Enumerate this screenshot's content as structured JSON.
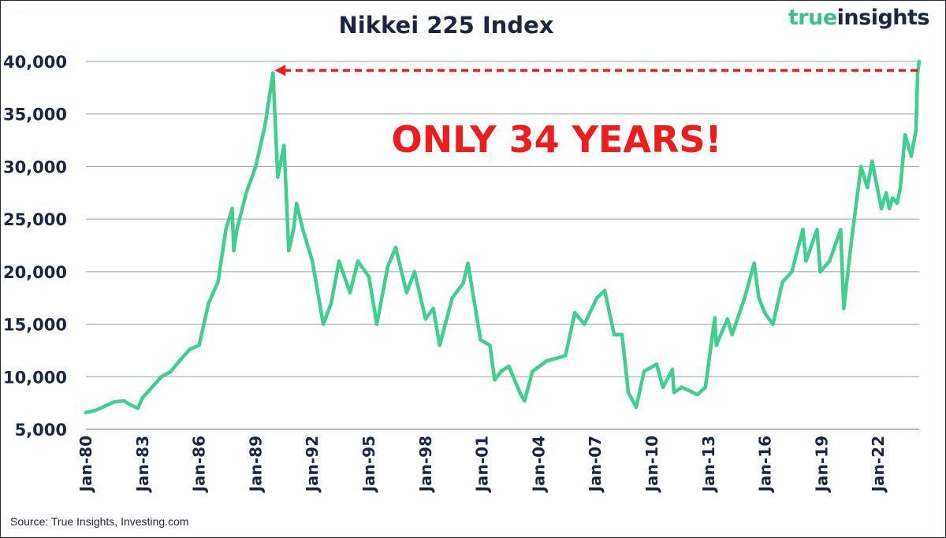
{
  "title": "Nikkei 225 Index",
  "brand": {
    "word1": "true",
    "word2": "insights"
  },
  "source": "Source: True Insights, Investing.com",
  "annotation": "ONLY 34 YEARS!",
  "colors": {
    "line": "#3fcf8e",
    "annotation": "#ee1c1c",
    "text": "#1b2640",
    "grid": "#9aa0aa"
  },
  "chart_data": {
    "type": "line",
    "title": "Nikkei 225 Index",
    "xlabel": "",
    "ylabel": "",
    "ylim": [
      5000,
      40000
    ],
    "xlim": [
      "1980-01",
      "2024-03"
    ],
    "grid": "horizontal",
    "y_ticks": [
      "5,000",
      "10,000",
      "15,000",
      "20,000",
      "25,000",
      "30,000",
      "35,000",
      "40,000"
    ],
    "x_ticks": [
      "Jan-80",
      "Jan-83",
      "Jan-86",
      "Jan-89",
      "Jan-92",
      "Jan-95",
      "Jan-98",
      "Jan-01",
      "Jan-04",
      "Jan-07",
      "Jan-10",
      "Jan-13",
      "Jan-16",
      "Jan-19",
      "Jan-22"
    ],
    "series": [
      {
        "x": [
          "1980-01",
          "1980-07",
          "1981-01",
          "1981-07",
          "1982-01",
          "1982-07",
          "1982-10",
          "1983-01",
          "1983-07",
          "1984-01",
          "1984-07",
          "1985-01",
          "1985-07",
          "1986-01",
          "1986-07",
          "1987-01",
          "1987-06",
          "1987-10",
          "1987-11",
          "1988-01",
          "1988-07",
          "1989-01",
          "1989-07",
          "1989-12",
          "1990-03",
          "1990-07",
          "1990-10",
          "1991-01",
          "1991-03",
          "1991-07",
          "1992-01",
          "1992-08",
          "1993-01",
          "1993-06",
          "1994-01",
          "1994-06",
          "1995-01",
          "1995-06",
          "1996-01",
          "1996-06",
          "1997-01",
          "1997-06",
          "1998-01",
          "1998-06",
          "1998-10",
          "1999-06",
          "2000-01",
          "2000-04",
          "2000-12",
          "2001-06",
          "2001-09",
          "2002-01",
          "2002-06",
          "2003-01",
          "2003-04",
          "2003-09",
          "2004-06",
          "2005-06",
          "2005-12",
          "2006-06",
          "2007-02",
          "2007-07",
          "2008-01",
          "2008-06",
          "2008-10",
          "2009-03",
          "2009-08",
          "2010-04",
          "2010-08",
          "2011-02",
          "2011-03",
          "2011-08",
          "2012-06",
          "2012-11",
          "2013-05",
          "2013-06",
          "2014-01",
          "2014-04",
          "2014-12",
          "2015-06",
          "2015-09",
          "2016-01",
          "2016-06",
          "2016-12",
          "2017-06",
          "2018-01",
          "2018-03",
          "2018-10",
          "2018-12",
          "2019-06",
          "2020-01",
          "2020-03",
          "2020-08",
          "2021-02",
          "2021-06",
          "2021-09",
          "2022-03",
          "2022-06",
          "2022-08",
          "2022-10",
          "2023-01",
          "2023-03",
          "2023-06",
          "2023-10",
          "2024-01",
          "2024-02",
          "2024-03"
        ],
        "values": [
          6600,
          6800,
          7200,
          7600,
          7700,
          7200,
          7000,
          8000,
          9000,
          10000,
          10500,
          11600,
          12600,
          13000,
          17000,
          19000,
          24000,
          26000,
          22000,
          24000,
          27500,
          30000,
          34000,
          38900,
          29000,
          32000,
          22000,
          24000,
          26500,
          24000,
          21000,
          15000,
          17000,
          21000,
          18000,
          21000,
          19500,
          15000,
          20500,
          22300,
          18000,
          20000,
          15500,
          16500,
          13000,
          17500,
          18900,
          20800,
          13500,
          13000,
          9700,
          10500,
          11000,
          8500,
          7700,
          10500,
          11500,
          12000,
          16100,
          15000,
          17500,
          18200,
          14000,
          14000,
          8500,
          7100,
          10500,
          11200,
          9000,
          10700,
          8500,
          9000,
          8300,
          9000,
          15600,
          13000,
          15500,
          14000,
          17500,
          20800,
          17500,
          16000,
          15000,
          19000,
          20000,
          24000,
          21000,
          24000,
          20000,
          21000,
          24000,
          16500,
          23000,
          30000,
          28000,
          30500,
          26000,
          27500,
          26000,
          27000,
          26500,
          28000,
          33000,
          31000,
          33500,
          38900,
          40000
        ]
      }
    ],
    "annotations": [
      {
        "text": "ONLY 34 YEARS!",
        "from": "2024-02",
        "to": "1989-12",
        "value": 39000
      }
    ]
  }
}
